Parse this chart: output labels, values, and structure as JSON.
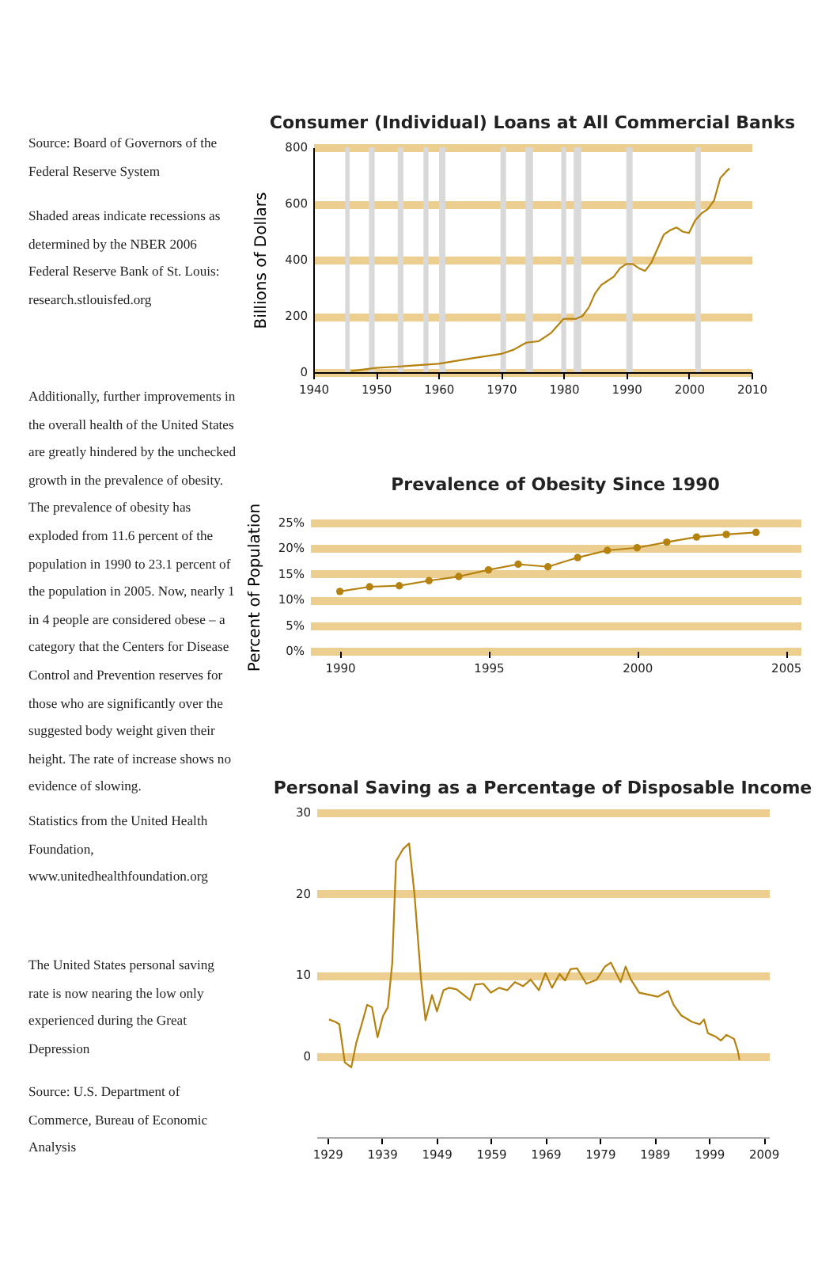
{
  "chart_data": [
    {
      "type": "line",
      "title": "Consumer (Individual) Loans at All Commercial Banks",
      "ylabel": "Billions of Dollars",
      "xlim": [
        1940,
        2010
      ],
      "xticks": [
        1940,
        1950,
        1960,
        1970,
        1980,
        1990,
        2000,
        2010
      ],
      "ylim": [
        0,
        800
      ],
      "yticks": [
        0,
        200,
        400,
        600,
        800
      ],
      "grid": "y",
      "marker": "none",
      "x": [
        1946,
        1950,
        1955,
        1960,
        1965,
        1970,
        1972,
        1974,
        1976,
        1978,
        1980,
        1982,
        1983,
        1984,
        1985,
        1986,
        1988,
        1989,
        1990,
        1991,
        1992,
        1993,
        1994,
        1995,
        1996,
        1997,
        1998,
        1999,
        2000,
        2001,
        2002,
        2003,
        2004,
        2005,
        2006,
        2006.5
      ],
      "series": [
        {
          "color": "#b5820f",
          "values": [
            4,
            15,
            22,
            30,
            48,
            65,
            80,
            105,
            110,
            140,
            190,
            190,
            200,
            230,
            280,
            310,
            340,
            370,
            385,
            385,
            370,
            360,
            390,
            440,
            490,
            505,
            515,
            500,
            495,
            540,
            565,
            580,
            610,
            690,
            715,
            725
          ]
        }
      ],
      "bands": [
        {
          "axis": "x",
          "from": 1945.1,
          "to": 1945.8,
          "color": "#d9d9d9"
        },
        {
          "axis": "x",
          "from": 1948.9,
          "to": 1949.8,
          "color": "#d9d9d9"
        },
        {
          "axis": "x",
          "from": 1953.5,
          "to": 1954.4,
          "color": "#d9d9d9"
        },
        {
          "axis": "x",
          "from": 1957.6,
          "to": 1958.4,
          "color": "#d9d9d9"
        },
        {
          "axis": "x",
          "from": 1960.1,
          "to": 1961.1,
          "color": "#d9d9d9"
        },
        {
          "axis": "x",
          "from": 1969.9,
          "to": 1970.8,
          "color": "#d9d9d9"
        },
        {
          "axis": "x",
          "from": 1973.9,
          "to": 1975.1,
          "color": "#d9d9d9"
        },
        {
          "axis": "x",
          "from": 1979.6,
          "to": 1980.4,
          "color": "#d9d9d9"
        },
        {
          "axis": "x",
          "from": 1981.6,
          "to": 1982.8,
          "color": "#d9d9d9"
        },
        {
          "axis": "x",
          "from": 1990.0,
          "to": 1991.0,
          "color": "#d9d9d9"
        },
        {
          "axis": "x",
          "from": 2001.0,
          "to": 2001.9,
          "color": "#d9d9d9"
        }
      ],
      "annotations": [
        "Source: Board of Governors of the Federal Reserve System",
        "Shaded areas indicate recessions as determined by the NBER 2006 Federal Reserve Bank of St. Louis: research.stlouisfed.org"
      ]
    },
    {
      "type": "line",
      "title": "Prevalence of Obesity Since 1990",
      "ylabel": "Percent of Population",
      "xlim": [
        1989,
        2005.5
      ],
      "xticks": [
        1990,
        1995,
        2000,
        2005
      ],
      "ylim": [
        0,
        25
      ],
      "yticks": [
        {
          "value": 0,
          "label": "0%"
        },
        {
          "value": 5,
          "label": "5%"
        },
        {
          "value": 10,
          "label": "10%"
        },
        {
          "value": 15,
          "label": "15%"
        },
        {
          "value": 20,
          "label": "20%"
        },
        {
          "value": 25,
          "label": "25%"
        }
      ],
      "grid": "y",
      "marker": "circle",
      "x": [
        1990,
        1991,
        1992,
        1993,
        1994,
        1995,
        1996,
        1997,
        1998,
        1999,
        2000,
        2001,
        2002,
        2003,
        2004
      ],
      "series": [
        {
          "color": "#b5820f",
          "values": [
            11.6,
            12.5,
            12.7,
            13.7,
            14.5,
            15.8,
            16.9,
            16.4,
            18.2,
            19.6,
            20.1,
            21.2,
            22.2,
            22.7,
            23.1
          ]
        }
      ],
      "annotations": [
        "Additionally, further improvements in the overall health of the United States are greatly hindered by the unchecked growth in the prevalence of obesity. The prevalence of obesity has exploded from 11.6 percent of the population in 1990 to 23.1 percent of the population in 2005. Now, nearly 1 in 4 people are considered obese – a category that the Centers for Disease Control and Prevention reserves for those who are significantly over the suggested body weight given their height. The rate of increase shows no evidence of slowing.",
        "Statistics from the United Health Foundation, www.unitedhealthfoundation.org"
      ]
    },
    {
      "type": "line",
      "title": "Personal Saving as a Percentage of Disposable Income",
      "xlim": [
        1927,
        2010
      ],
      "xticks": [
        1929,
        1939,
        1949,
        1959,
        1969,
        1979,
        1989,
        1999,
        2009
      ],
      "ylim": [
        -10,
        30
      ],
      "yticks": [
        0,
        10,
        20,
        30
      ],
      "grid": "y",
      "marker": "none",
      "x": [
        1929.3,
        1930.5,
        1931.2,
        1932.2,
        1933.4,
        1934.3,
        1935.3,
        1936.3,
        1937.2,
        1938.2,
        1939.2,
        1940.1,
        1940.9,
        1941.6,
        1942.9,
        1944.0,
        1945.0,
        1946.2,
        1947.0,
        1948.2,
        1949.1,
        1950.3,
        1951.3,
        1952.7,
        1955.2,
        1956.1,
        1957.6,
        1959.0,
        1960.5,
        1962.0,
        1963.4,
        1964.9,
        1966.3,
        1967.8,
        1969.0,
        1970.2,
        1971.6,
        1972.6,
        1973.6,
        1974.8,
        1976.5,
        1978.4,
        1979.9,
        1981.0,
        1982.8,
        1983.7,
        1984.7,
        1986.2,
        1987.6,
        1989.6,
        1991.5,
        1992.5,
        1993.9,
        1995.9,
        1997.3,
        1998.1,
        1998.8,
        2000.2,
        2001.2,
        2002.2,
        2003.6,
        2004.3,
        2004.6
      ],
      "series": [
        {
          "color": "#b5820f",
          "values": [
            4.5,
            4.2,
            3.9,
            -0.8,
            -1.4,
            1.6,
            3.9,
            6.3,
            6.0,
            2.3,
            4.9,
            6.0,
            11.4,
            24.0,
            25.5,
            26.2,
            19.8,
            9.3,
            4.4,
            7.5,
            5.5,
            8.1,
            8.4,
            8.2,
            6.9,
            8.8,
            8.9,
            7.8,
            8.4,
            8.1,
            9.1,
            8.6,
            9.4,
            8.1,
            10.2,
            8.4,
            10.1,
            9.3,
            10.7,
            10.8,
            8.9,
            9.4,
            11.0,
            11.5,
            9.1,
            11.0,
            9.4,
            7.8,
            7.6,
            7.3,
            8.0,
            6.3,
            5.0,
            4.2,
            3.9,
            4.5,
            2.8,
            2.4,
            1.9,
            2.6,
            2.1,
            0.6,
            -0.5
          ]
        }
      ],
      "annotations": [
        "The United States personal saving rate is now nearing the low only experienced during the Great Depression",
        "Source: U.S. Department of Commerce, Bureau of Economic Analysis"
      ]
    }
  ]
}
